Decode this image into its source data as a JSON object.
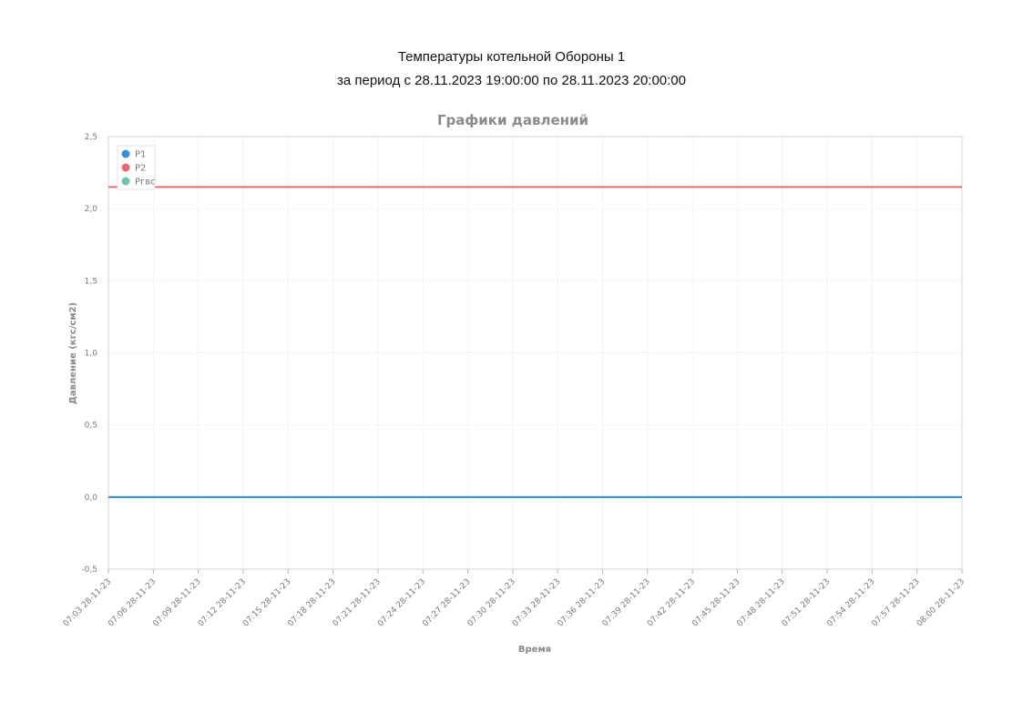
{
  "report": {
    "title": "Температуры котельной Обороны 1",
    "subtitle": "за период с 28.11.2023 19:00:00 по 28.11.2023 20:00:00"
  },
  "chart_data": {
    "type": "line",
    "title": "Графики давлений",
    "xlabel": "Время",
    "ylabel": "Давление (кгс/см2)",
    "ylim": [
      -0.5,
      2.5
    ],
    "y_ticks": [
      "2,5",
      "2,0",
      "1,5",
      "1,0",
      "0,5",
      "0,0",
      "-0,5"
    ],
    "y_tick_values": [
      2.5,
      2.0,
      1.5,
      1.0,
      0.5,
      0.0,
      -0.5
    ],
    "categories": [
      "07:03 28-11-23",
      "07:06 28-11-23",
      "07:09 28-11-23",
      "07:12 28-11-23",
      "07:15 28-11-23",
      "07:18 28-11-23",
      "07:21 28-11-23",
      "07:24 28-11-23",
      "07:27 28-11-23",
      "07:30 28-11-23",
      "07:33 28-11-23",
      "07:36 28-11-23",
      "07:39 28-11-23",
      "07:42 28-11-23",
      "07:45 28-11-23",
      "07:48 28-11-23",
      "07:51 28-11-23",
      "07:54 28-11-23",
      "07:57 28-11-23",
      "08:00 28-11-23"
    ],
    "grid": true,
    "legend_position": "top-left",
    "series": [
      {
        "name": "P1",
        "color": "#3a8fd1",
        "values": [
          0,
          0,
          0,
          0,
          0,
          0,
          0,
          0,
          0,
          0,
          0,
          0,
          0,
          0,
          0,
          0,
          0,
          0,
          0,
          0
        ]
      },
      {
        "name": "P2",
        "color": "#e96a73",
        "values": [
          2.15,
          2.15,
          2.15,
          2.15,
          2.15,
          2.15,
          2.15,
          2.15,
          2.15,
          2.15,
          2.15,
          2.15,
          2.15,
          2.15,
          2.15,
          2.15,
          2.15,
          2.15,
          2.15,
          2.15
        ]
      },
      {
        "name": "Ргвс",
        "color": "#6cc7ae",
        "values": [
          0,
          0,
          0,
          0,
          0,
          0,
          0,
          0,
          0,
          0,
          0,
          0,
          0,
          0,
          0,
          0,
          0,
          0,
          0,
          0
        ]
      }
    ]
  }
}
